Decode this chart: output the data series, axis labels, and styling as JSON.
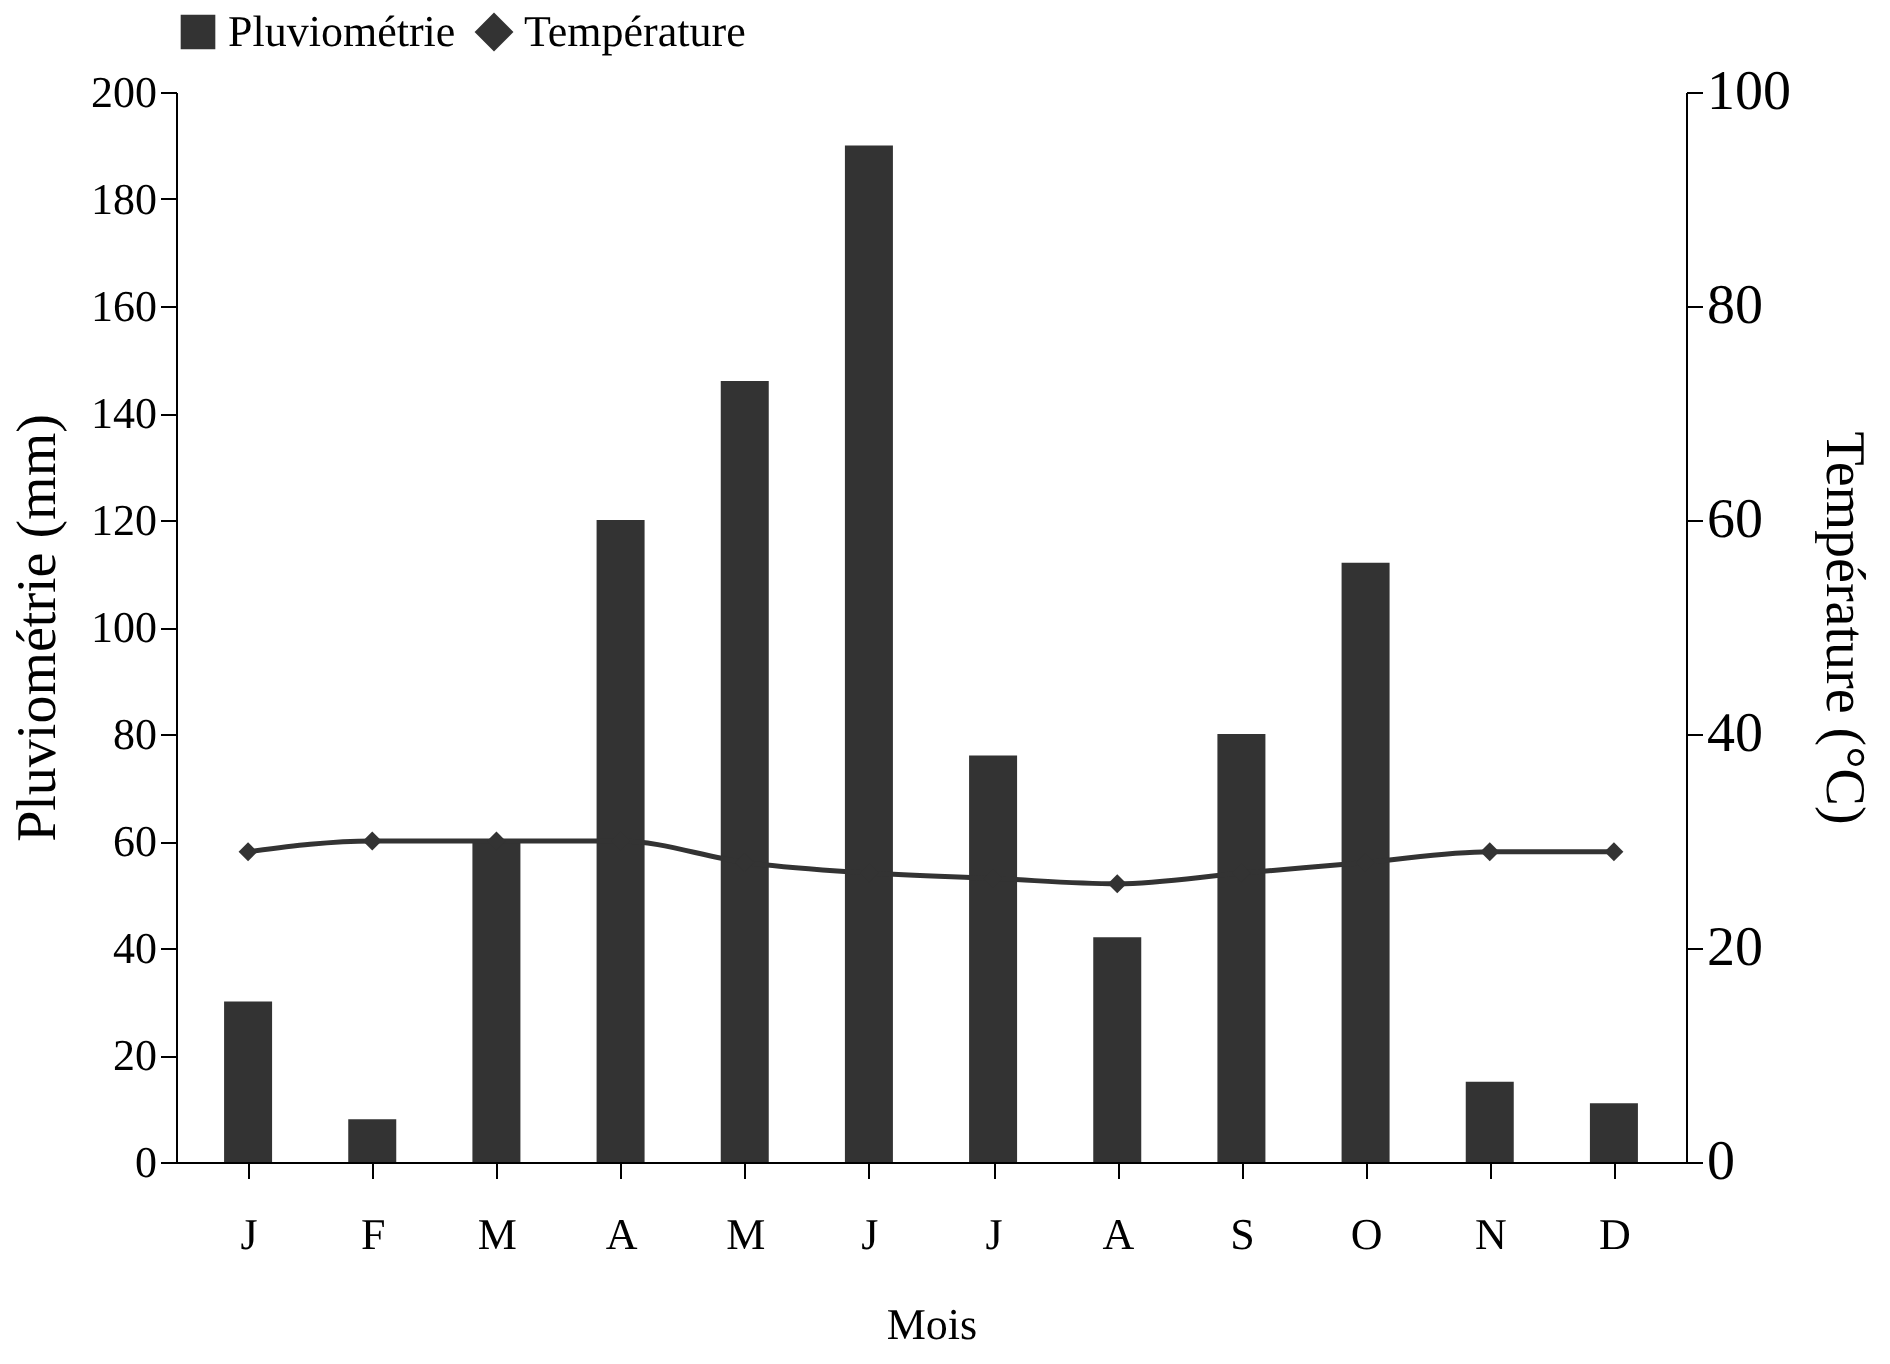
{
  "chart_data": {
    "type": "bar",
    "xlabel": "Mois",
    "ylabel": "Pluviométrie  (mm)",
    "y2label": "Température (°C)",
    "categories": [
      "J",
      "F",
      "M",
      "A",
      "M",
      "J",
      "J",
      "A",
      "S",
      "O",
      "N",
      "D"
    ],
    "series": [
      {
        "name": "Pluviométrie",
        "color": "#333333",
        "values": [
          30,
          8,
          60,
          120,
          146,
          190,
          76,
          42,
          80,
          112,
          15,
          11
        ]
      },
      {
        "name": "Température",
        "type": "line",
        "axis": "y2",
        "color": "#333333",
        "marker": "diamond",
        "values": [
          29,
          30,
          30,
          30,
          28,
          27,
          26.5,
          26,
          27,
          28,
          29,
          29
        ]
      }
    ],
    "ylim": [
      0,
      200
    ],
    "yticks": [
      0,
      20,
      40,
      60,
      80,
      100,
      120,
      140,
      160,
      180,
      200
    ],
    "y2lim": [
      0,
      100
    ],
    "y2ticks": [
      0,
      20,
      40,
      60,
      80,
      100
    ],
    "grid": false,
    "legend": "top"
  }
}
